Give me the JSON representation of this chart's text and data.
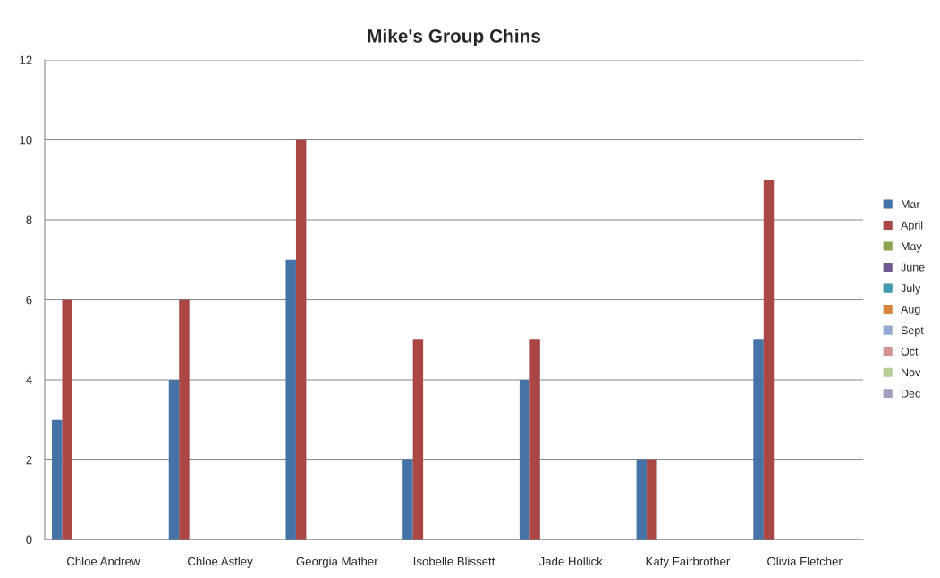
{
  "chart_data": {
    "type": "bar",
    "title": "Mike's Group Chins",
    "categories": [
      "Chloe Andrew",
      "Chloe Astley",
      "Georgia Mather",
      "Isobelle Blissett",
      "Jade Hollick",
      "Katy Fairbrother",
      "Olivia Fletcher"
    ],
    "series": [
      {
        "name": "Mar",
        "color": "#4572a7",
        "values": [
          3,
          4,
          7,
          2,
          4,
          2,
          5
        ]
      },
      {
        "name": "April",
        "color": "#aa4643",
        "values": [
          6,
          6,
          10,
          5,
          5,
          2,
          9
        ]
      },
      {
        "name": "May",
        "color": "#89a54e",
        "values": [
          null,
          null,
          null,
          null,
          null,
          null,
          null
        ]
      },
      {
        "name": "June",
        "color": "#71588f",
        "values": [
          null,
          null,
          null,
          null,
          null,
          null,
          null
        ]
      },
      {
        "name": "July",
        "color": "#4198af",
        "values": [
          null,
          null,
          null,
          null,
          null,
          null,
          null
        ]
      },
      {
        "name": "Aug",
        "color": "#db843d",
        "values": [
          null,
          null,
          null,
          null,
          null,
          null,
          null
        ]
      },
      {
        "name": "Sept",
        "color": "#93a9cf",
        "values": [
          null,
          null,
          null,
          null,
          null,
          null,
          null
        ]
      },
      {
        "name": "Oct",
        "color": "#d19392",
        "values": [
          null,
          null,
          null,
          null,
          null,
          null,
          null
        ]
      },
      {
        "name": "Nov",
        "color": "#b9cd96",
        "values": [
          null,
          null,
          null,
          null,
          null,
          null,
          null
        ]
      },
      {
        "name": "Dec",
        "color": "#a99bbd",
        "values": [
          null,
          null,
          null,
          null,
          null,
          null,
          null
        ]
      }
    ],
    "ylim": [
      0,
      12
    ],
    "yticks": [
      0,
      2,
      4,
      6,
      8,
      10,
      12
    ],
    "grid": "y",
    "legend": "right"
  }
}
